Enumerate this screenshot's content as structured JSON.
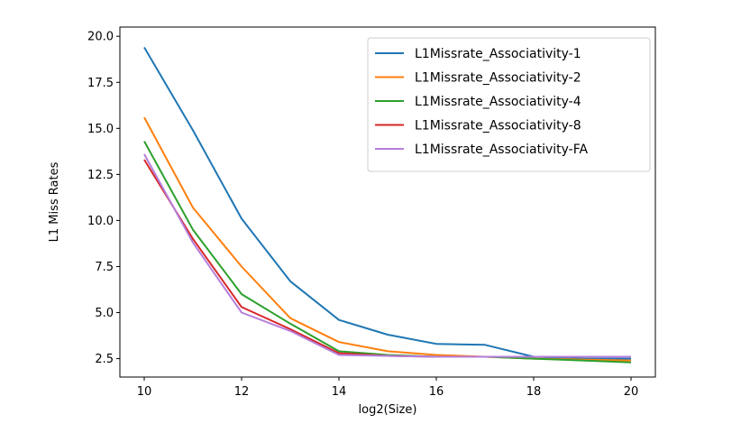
{
  "chart_data": {
    "type": "line",
    "title": "",
    "xlabel": "log2(Size)",
    "ylabel": "L1 Miss Rates",
    "xlim": [
      9.5,
      20.5
    ],
    "ylim": [
      1.5,
      20.5
    ],
    "xticks": [
      10,
      12,
      14,
      16,
      18,
      20
    ],
    "yticks": [
      2.5,
      5.0,
      7.5,
      10.0,
      12.5,
      15.0,
      17.5,
      20.0
    ],
    "xtick_labels": [
      "10",
      "12",
      "14",
      "16",
      "18",
      "20"
    ],
    "ytick_labels": [
      "2.5",
      "5.0",
      "7.5",
      "10.0",
      "12.5",
      "15.0",
      "17.5",
      "20.0"
    ],
    "grid": false,
    "legend_position": "top-right",
    "x": [
      10,
      11,
      12,
      13,
      14,
      15,
      16,
      17,
      18,
      19,
      20
    ],
    "series": [
      {
        "name": "L1Missrate_Associativity-1",
        "color": "#1f77b4",
        "values": [
          19.4,
          14.9,
          10.1,
          6.7,
          4.6,
          3.8,
          3.3,
          3.25,
          2.6,
          2.5,
          2.5
        ]
      },
      {
        "name": "L1Missrate_Associativity-2",
        "color": "#ff7f0e",
        "values": [
          15.6,
          10.7,
          7.5,
          4.7,
          3.4,
          2.9,
          2.7,
          2.6,
          2.5,
          2.45,
          2.4
        ]
      },
      {
        "name": "L1Missrate_Associativity-4",
        "color": "#2ca02c",
        "values": [
          14.3,
          9.5,
          6.0,
          4.4,
          2.9,
          2.7,
          2.6,
          2.6,
          2.5,
          2.4,
          2.3
        ]
      },
      {
        "name": "L1Missrate_Associativity-8",
        "color": "#d62728",
        "values": [
          13.3,
          9.0,
          5.3,
          4.1,
          2.8,
          2.65,
          2.6,
          2.6,
          2.6,
          2.6,
          2.6
        ]
      },
      {
        "name": "L1Missrate_Associativity-FA",
        "color": "#b57edc",
        "values": [
          13.6,
          8.8,
          5.0,
          4.0,
          2.7,
          2.65,
          2.6,
          2.6,
          2.6,
          2.6,
          2.6
        ]
      }
    ]
  }
}
